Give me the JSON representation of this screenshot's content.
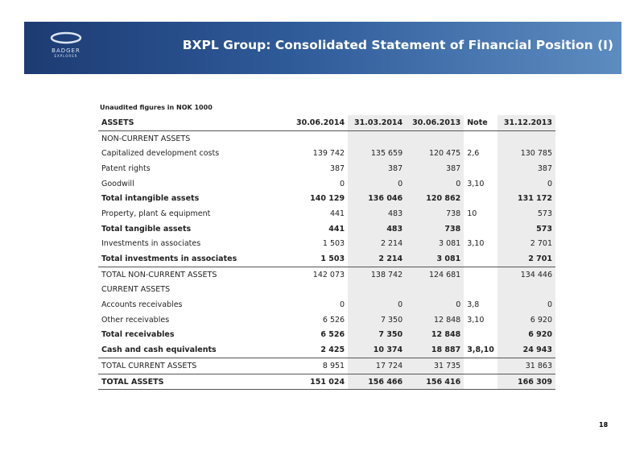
{
  "header": {
    "title": "BXPL Group: Consolidated Statement of Financial Position (I)",
    "logo": [
      "BADGER",
      "EXPLORER"
    ]
  },
  "note": "Unaudited figures in NOK 1000",
  "table": {
    "columns": [
      "ASSETS",
      "30.06.2014",
      "31.03.2014",
      "30.06.2013",
      "Note",
      "31.12.2013"
    ],
    "rows": [
      {
        "label": "NON-CURRENT ASSETS"
      },
      {
        "label": "Capitalized development costs",
        "cells": [
          "139 742",
          "135 659",
          "120 475",
          "2,6",
          "130 785"
        ]
      },
      {
        "label": "Patent rights",
        "cells": [
          "387",
          "387",
          "387",
          null,
          "387"
        ]
      },
      {
        "label": "Goodwill",
        "cells": [
          "0",
          "0",
          "0",
          "3,10",
          "0"
        ]
      },
      {
        "label": "Total intangible assets",
        "bold": true,
        "cells": [
          "140 129",
          "136 046",
          "120 862",
          null,
          "131 172"
        ]
      },
      {
        "label": "Property, plant & equipment",
        "cells": [
          "441",
          "483",
          "738",
          "10",
          "573"
        ]
      },
      {
        "label": "Total tangible assets",
        "bold": true,
        "cells": [
          "441",
          "483",
          "738",
          null,
          "573"
        ]
      },
      {
        "label": "Investments in associates",
        "cells": [
          "1 503",
          "2 214",
          "3 081",
          "3,10",
          "2 701"
        ]
      },
      {
        "label": "Total investments in associates",
        "bold": true,
        "cells": [
          "1 503",
          "2 214",
          "3 081",
          null,
          "2 701"
        ]
      },
      {
        "label": "TOTAL NON-CURRENT ASSETS",
        "rule": true,
        "cells": [
          "142 073",
          "138 742",
          "124 681",
          null,
          "134 446"
        ]
      },
      {
        "label": "CURRENT ASSETS"
      },
      {
        "label": "Accounts receivables",
        "cells": [
          "0",
          "0",
          "0",
          "3,8",
          "0"
        ]
      },
      {
        "label": "Other receivables",
        "cells": [
          "6 526",
          "7 350",
          "12 848",
          "3,10",
          "6 920"
        ]
      },
      {
        "label": "Total receivables",
        "bold": true,
        "cells": [
          "6 526",
          "7 350",
          "12 848",
          null,
          "6 920"
        ]
      },
      {
        "label": "Cash and cash equivalents",
        "bold": true,
        "cells": [
          "2 425",
          "10 374",
          "18 887",
          "3,8,10",
          "24 943"
        ]
      },
      {
        "label": "TOTAL CURRENT ASSETS",
        "rule": true,
        "cells": [
          "8 951",
          "17 724",
          "31 735",
          null,
          "31 863"
        ]
      },
      {
        "label": "TOTAL ASSETS",
        "bold": true,
        "rule": true,
        "cells": [
          "151 024",
          "156 466",
          "156 416",
          null,
          "166 309"
        ]
      }
    ]
  },
  "page_number": "18"
}
